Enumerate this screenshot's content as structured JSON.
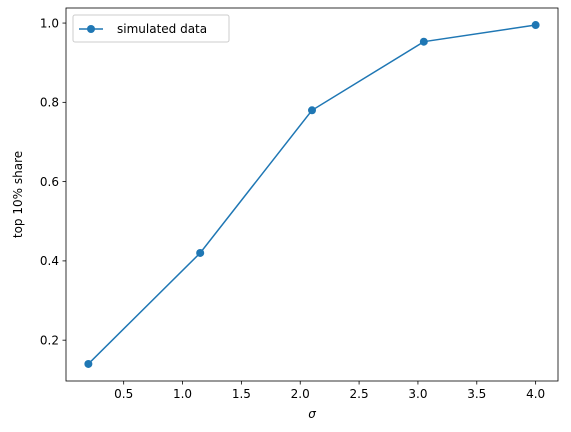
{
  "chart_data": {
    "type": "line",
    "x": [
      0.2,
      1.15,
      2.1,
      3.05,
      4.0
    ],
    "series": [
      {
        "name": "simulated data",
        "values": [
          0.14,
          0.42,
          0.78,
          0.953,
          0.995
        ],
        "color": "#1f77b4",
        "marker": "circle"
      }
    ],
    "xlabel": "σ",
    "ylabel": "top 10% share",
    "xlim": [
      0.01,
      4.19
    ],
    "ylim": [
      0.097,
      1.038
    ],
    "xticks": [
      0.5,
      1.0,
      1.5,
      2.0,
      2.5,
      3.0,
      3.5,
      4.0
    ],
    "xtick_labels": [
      "0.5",
      "1.0",
      "1.5",
      "2.0",
      "2.5",
      "3.0",
      "3.5",
      "4.0"
    ],
    "yticks": [
      0.2,
      0.4,
      0.6,
      0.8,
      1.0
    ],
    "ytick_labels": [
      "0.2",
      "0.4",
      "0.6",
      "0.8",
      "1.0"
    ],
    "grid": false,
    "legend": {
      "position": "top-left"
    }
  }
}
